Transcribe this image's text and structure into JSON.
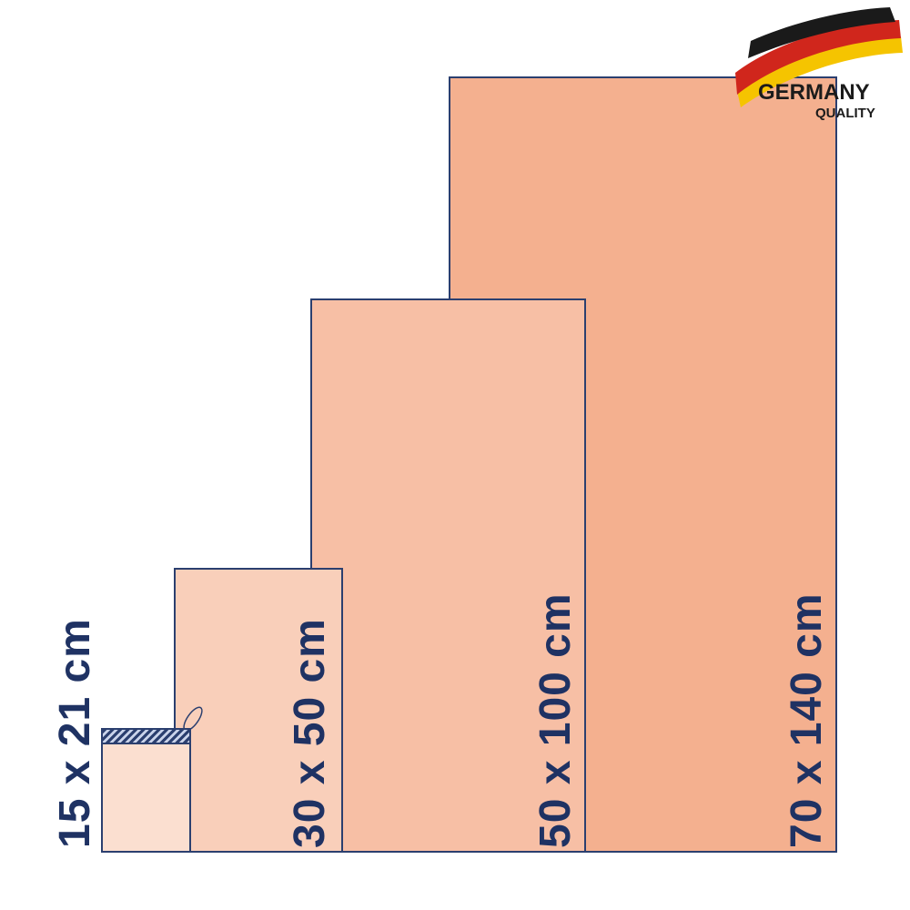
{
  "sizes": [
    {
      "label": "15 x 21 cm",
      "color": "#fbdfd0"
    },
    {
      "label": "30 x 50 cm",
      "color": "#f9cfba"
    },
    {
      "label": "50 x 100 cm",
      "color": "#f7bfa5"
    },
    {
      "label": "70 x 140 cm",
      "color": "#f4b08f"
    }
  ],
  "logo": {
    "line1": "GERMANY",
    "line2": "QUALITY",
    "flag_colors": [
      "#1a1a1a",
      "#d0261c",
      "#f5c400"
    ]
  },
  "outline_color": "#2b3f6f",
  "text_color": "#1f3263"
}
